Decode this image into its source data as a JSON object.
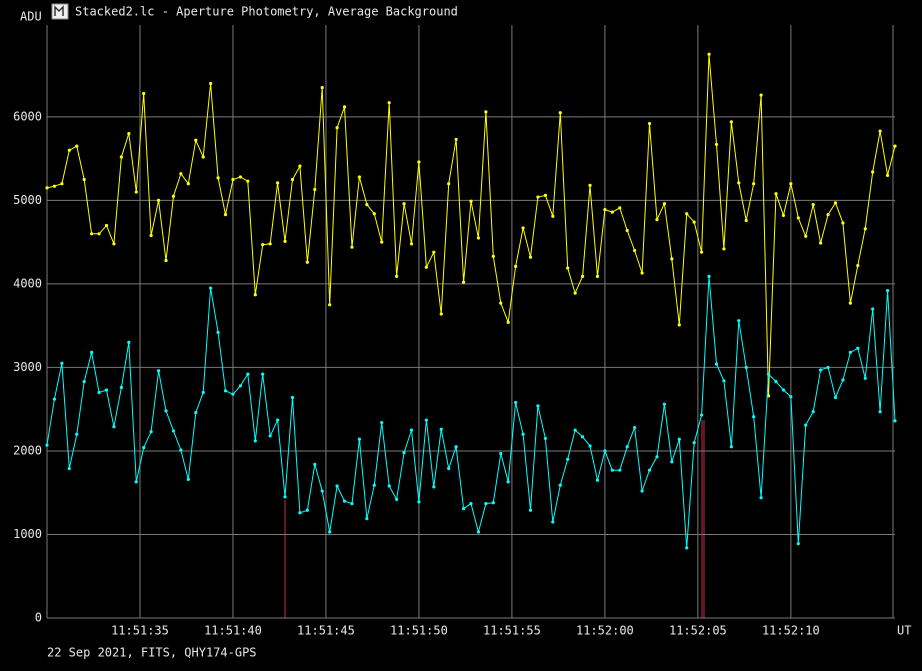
{
  "chart_data": {
    "type": "line",
    "title": "Stacked2.lc - Aperture Photometry, Average Background",
    "ylabel": "ADU",
    "xlabel": "UT",
    "footer": "22 Sep 2021, FITS, QHY174-GPS",
    "grid": true,
    "ylim": [
      0,
      7100
    ],
    "yticks": [
      0,
      1000,
      2000,
      3000,
      4000,
      5000,
      6000
    ],
    "xlim": [
      42690,
      42735.6
    ],
    "xticks": [
      {
        "value": 42695,
        "label": "11:51:35"
      },
      {
        "value": 42700,
        "label": "11:51:40"
      },
      {
        "value": 42705,
        "label": "11:51:45"
      },
      {
        "value": 42710,
        "label": "11:51:50"
      },
      {
        "value": 42715,
        "label": "11:51:55"
      },
      {
        "value": 42720,
        "label": "11:52:00"
      },
      {
        "value": 42725,
        "label": "11:52:05"
      },
      {
        "value": 42730,
        "label": "11:52:10"
      }
    ],
    "x": [
      42690,
      42690.4,
      42690.8,
      42691.2,
      42691.6,
      42692,
      42692.4,
      42692.8,
      42693.2,
      42693.6,
      42694,
      42694.4,
      42694.8,
      42695.2,
      42695.6,
      42696,
      42696.4,
      42696.8,
      42697.2,
      42697.6,
      42698,
      42698.4,
      42698.8,
      42699.2,
      42699.6,
      42700,
      42700.4,
      42700.8,
      42701.2,
      42701.6,
      42702,
      42702.4,
      42702.8,
      42703.2,
      42703.6,
      42704,
      42704.4,
      42704.8,
      42705.2,
      42705.6,
      42706,
      42706.4,
      42706.8,
      42707.2,
      42707.6,
      42708,
      42708.4,
      42708.8,
      42709.2,
      42709.6,
      42710,
      42710.4,
      42710.8,
      42711.2,
      42711.6,
      42712,
      42712.4,
      42712.8,
      42713.2,
      42713.6,
      42714,
      42714.4,
      42714.8,
      42715.2,
      42715.6,
      42716,
      42716.4,
      42716.8,
      42717.2,
      42717.6,
      42718,
      42718.4,
      42718.8,
      42719.2,
      42719.6,
      42720,
      42720.4,
      42720.8,
      42721.2,
      42721.6,
      42722,
      42722.4,
      42722.8,
      42723.2,
      42723.6,
      42724,
      42724.4,
      42724.8,
      42725.2,
      42725.6,
      42726,
      42726.4,
      42726.8,
      42727.2,
      42727.6,
      42728,
      42728.4,
      42728.8,
      42729.2,
      42729.6,
      42730,
      42730.4,
      42730.8,
      42731.2,
      42731.6,
      42732,
      42732.4,
      42732.8,
      42733.2,
      42733.6,
      42734,
      42734.4,
      42734.8,
      42735.2,
      42735.6
    ],
    "series": [
      {
        "color": "#ffff00",
        "values": [
          5150,
          5170,
          5200,
          5600,
          5650,
          5250,
          4600,
          4600,
          4700,
          4480,
          5520,
          5800,
          5100,
          6280,
          4580,
          5000,
          4280,
          5050,
          5320,
          5200,
          5720,
          5520,
          6400,
          5270,
          4830,
          5250,
          5280,
          5230,
          3870,
          4470,
          4480,
          5210,
          4510,
          5250,
          5410,
          4260,
          5130,
          6350,
          3750,
          5870,
          6120,
          4440,
          5280,
          4950,
          4840,
          4500,
          6170,
          4090,
          4960,
          4480,
          5460,
          4200,
          4380,
          3640,
          5200,
          5730,
          4020,
          4990,
          4550,
          6060,
          4330,
          3770,
          3540,
          4210,
          4670,
          4320,
          5040,
          5060,
          4810,
          6050,
          4190,
          3890,
          4090,
          5180,
          4090,
          4890,
          4860,
          4910,
          4640,
          4400,
          4130,
          5920,
          4770,
          4960,
          4300,
          3510,
          4840,
          4740,
          4380,
          6750,
          5670,
          4420,
          5940,
          5210,
          4760,
          5200,
          6260,
          2660,
          5080,
          4820,
          5200,
          4790,
          4570,
          4950,
          4490,
          4830,
          4970,
          4730,
          3770,
          4220,
          4660,
          5340,
          5830,
          5300,
          5650
        ]
      },
      {
        "color": "#00ffff",
        "values": [
          2070,
          2620,
          3050,
          1790,
          2200,
          2830,
          3180,
          2700,
          2730,
          2290,
          2760,
          3300,
          1630,
          2040,
          2230,
          2960,
          2480,
          2240,
          2010,
          1660,
          2460,
          2700,
          3950,
          3420,
          2720,
          2680,
          2780,
          2920,
          2120,
          2920,
          2180,
          2370,
          1450,
          2640,
          1260,
          1290,
          1840,
          1520,
          1030,
          1580,
          1400,
          1370,
          2140,
          1190,
          1590,
          2340,
          1580,
          1420,
          1980,
          2250,
          1390,
          2370,
          1570,
          2260,
          1790,
          2050,
          1310,
          1370,
          1030,
          1370,
          1380,
          1970,
          1630,
          2580,
          2200,
          1290,
          2540,
          2150,
          1150,
          1590,
          1900,
          2250,
          2170,
          2060,
          1650,
          2000,
          1770,
          1770,
          2050,
          2280,
          1520,
          1770,
          1930,
          2560,
          1870,
          2140,
          840,
          2100,
          2430,
          4090,
          3040,
          2840,
          2050,
          3560,
          3000,
          2410,
          1440,
          2920,
          2830,
          2730,
          2650,
          890,
          2310,
          2470,
          2970,
          3000,
          2640,
          2850,
          3180,
          3230,
          2870,
          3700,
          2470,
          3920,
          2360
        ]
      }
    ]
  }
}
